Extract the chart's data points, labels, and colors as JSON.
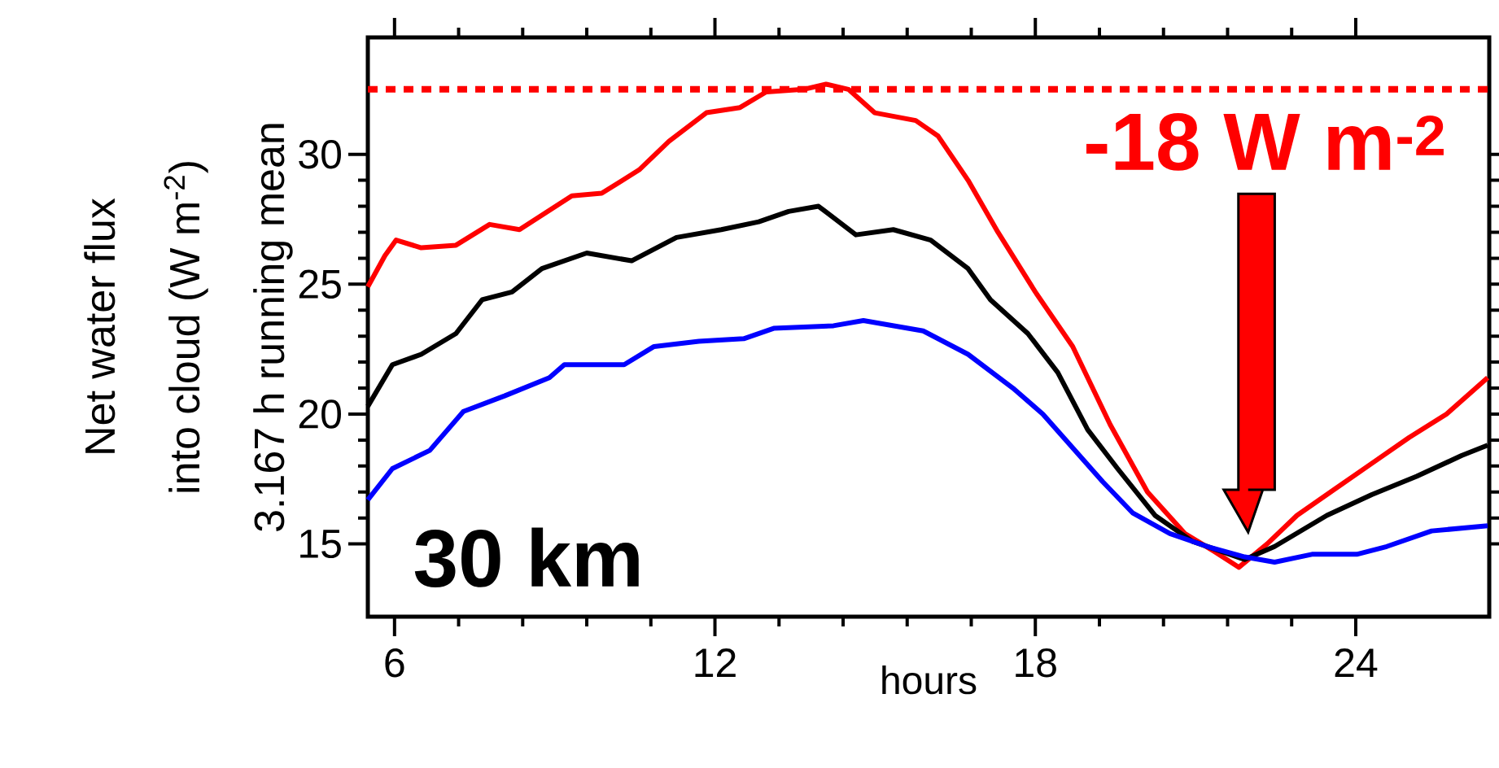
{
  "chart_data": {
    "type": "line",
    "xlabel": "hours",
    "ylabel": "Net water flux into cloud (W m$^{-2}$) 3.167 h running mean",
    "xlim": [
      5.5,
      26.5
    ],
    "ylim": [
      12.2,
      34.5
    ],
    "xticks": [
      6,
      12,
      18,
      24
    ],
    "yticks": [
      15,
      20,
      25,
      30
    ],
    "grid": false,
    "marker": "none",
    "line_style": "solid",
    "series": [
      {
        "color": "#ff0000",
        "x": [
          5.5,
          5.82,
          6.03,
          6.5,
          7.15,
          7.78,
          8.34,
          9.32,
          9.88,
          10.58,
          11.14,
          11.84,
          12.47,
          12.96,
          13.66,
          14.08,
          14.5,
          14.99,
          15.76,
          16.18,
          16.74,
          17.3,
          18.0,
          18.7,
          19.4,
          20.1,
          20.8,
          21.36,
          21.81,
          22.34,
          22.9,
          23.6,
          24.3,
          25.0,
          25.7,
          26.47
        ],
        "values": [
          24.9,
          26.1,
          26.7,
          26.4,
          26.5,
          27.3,
          27.1,
          28.4,
          28.5,
          29.4,
          30.5,
          31.6,
          31.8,
          32.4,
          32.5,
          32.7,
          32.5,
          31.6,
          31.3,
          30.7,
          29.0,
          27.0,
          24.7,
          22.6,
          19.6,
          17.0,
          15.4,
          14.7,
          14.1,
          15.0,
          16.1,
          17.1,
          18.1,
          19.1,
          20.0,
          21.4
        ]
      },
      {
        "color": "#000000",
        "x": [
          5.5,
          5.96,
          6.5,
          7.15,
          7.64,
          8.2,
          8.76,
          9.6,
          10.44,
          11.28,
          12.12,
          12.82,
          13.38,
          13.94,
          14.64,
          15.34,
          16.04,
          16.74,
          17.16,
          17.86,
          18.42,
          18.98,
          19.54,
          20.24,
          20.94,
          21.5,
          21.92,
          22.48,
          23.46,
          24.3,
          25.14,
          25.98,
          26.47
        ],
        "values": [
          20.3,
          21.9,
          22.3,
          23.1,
          24.4,
          24.7,
          25.6,
          26.2,
          25.9,
          26.8,
          27.1,
          27.4,
          27.8,
          28.0,
          26.9,
          27.1,
          26.7,
          25.6,
          24.4,
          23.1,
          21.6,
          19.4,
          17.9,
          16.1,
          15.1,
          14.7,
          14.4,
          14.9,
          16.1,
          16.9,
          17.6,
          18.4,
          18.8
        ]
      },
      {
        "color": "#0000ff",
        "x": [
          5.5,
          5.96,
          6.66,
          7.29,
          8.06,
          8.9,
          9.18,
          10.3,
          10.86,
          11.7,
          12.54,
          13.1,
          14.22,
          14.78,
          15.9,
          16.74,
          17.58,
          18.14,
          18.7,
          19.26,
          19.82,
          20.52,
          21.22,
          21.92,
          22.48,
          23.18,
          24.02,
          24.58,
          25.42,
          26.47
        ],
        "values": [
          16.7,
          17.9,
          18.6,
          20.1,
          20.7,
          21.4,
          21.9,
          21.9,
          22.6,
          22.8,
          22.9,
          23.3,
          23.4,
          23.6,
          23.2,
          22.3,
          21.0,
          20.0,
          18.7,
          17.4,
          16.2,
          15.4,
          14.9,
          14.5,
          14.3,
          14.6,
          14.6,
          14.9,
          15.5,
          15.7
        ]
      }
    ],
    "ref_lines": [
      {
        "axis": "y",
        "value": 32.5,
        "color": "#ff0000",
        "line_style": "dotted"
      }
    ],
    "annotations": [
      "30 km",
      "-18 W m$^{-2}$"
    ]
  }
}
